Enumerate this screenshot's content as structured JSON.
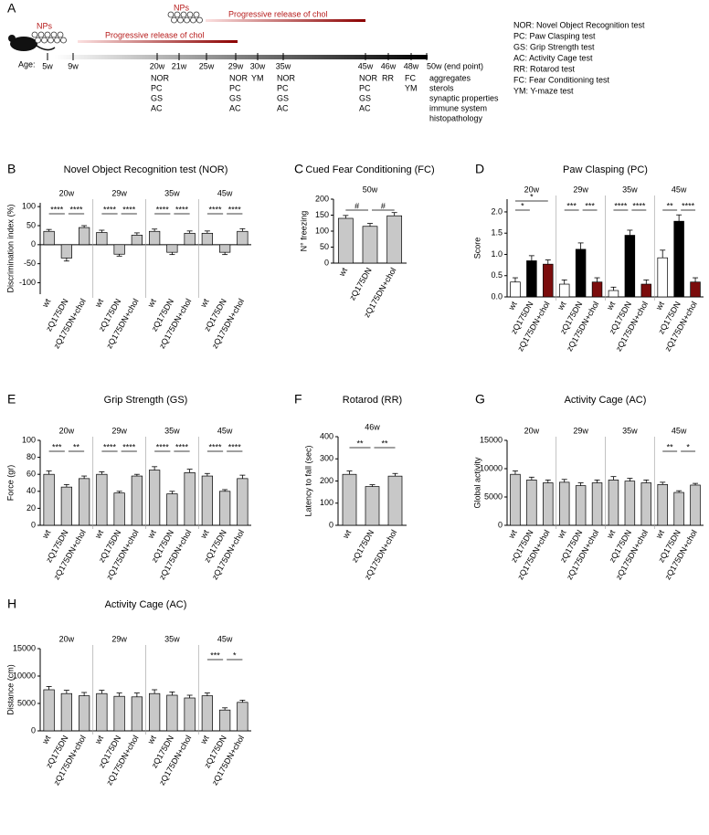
{
  "panel_a": {
    "label": "A",
    "np_labels": [
      "NPs",
      "NPs"
    ],
    "release_labels": [
      "Progressive release of chol",
      "Progressive release of chol"
    ],
    "age_label": "Age:",
    "ages": [
      {
        "age": "5w",
        "tests": []
      },
      {
        "age": "9w",
        "tests": []
      },
      {
        "age": "20w",
        "tests": [
          "NOR",
          "PC",
          "GS",
          "AC"
        ]
      },
      {
        "age": "21w",
        "tests": []
      },
      {
        "age": "25w",
        "tests": []
      },
      {
        "age": "29w",
        "tests": [
          "NOR",
          "PC",
          "GS",
          "AC"
        ]
      },
      {
        "age": "30w",
        "tests": [
          "YM"
        ]
      },
      {
        "age": "35w",
        "tests": [
          "NOR",
          "PC",
          "GS",
          "AC"
        ]
      },
      {
        "age": "45w",
        "tests": [
          "NOR",
          "PC",
          "GS",
          "AC"
        ]
      },
      {
        "age": "46w",
        "tests": [
          "RR"
        ]
      },
      {
        "age": "48w",
        "tests": [
          "FC",
          "YM"
        ]
      },
      {
        "age": "50w (end point)",
        "tests": [
          "aggregates",
          "sterols",
          "synaptic properties",
          "immune system",
          "histopathology"
        ]
      }
    ],
    "legend": [
      "NOR: Novel Object Recognition test",
      "PC: Paw Clasping test",
      "GS: Grip Strength test",
      "AC: Activity Cage test",
      "RR: Rotarod test",
      "FC: Fear Conditioning test",
      "YM: Y-maze test"
    ]
  },
  "chart_data": [
    {
      "type": "bar",
      "panel": "B",
      "title": "Novel Object Recognition test (NOR)",
      "ylabel": "Discrimination index (%)",
      "ylim": [
        -130,
        110
      ],
      "yticks": [
        -100,
        -50,
        0,
        50,
        100
      ],
      "groups": [
        "20w",
        "29w",
        "35w",
        "45w"
      ],
      "categories": [
        "wt",
        "zQ175DN",
        "zQ175DN+chol"
      ],
      "colors": [
        "#c8c8c8",
        "#c8c8c8",
        "#c8c8c8"
      ],
      "values": [
        [
          35,
          -35,
          45
        ],
        [
          32,
          -25,
          25
        ],
        [
          35,
          -20,
          30
        ],
        [
          30,
          -20,
          35
        ]
      ],
      "errors": [
        [
          5,
          8,
          5
        ],
        [
          6,
          5,
          6
        ],
        [
          6,
          6,
          6
        ],
        [
          6,
          6,
          7
        ]
      ],
      "significance": [
        [
          "****",
          "****",
          null
        ],
        [
          "****",
          "****",
          null
        ],
        [
          "****",
          "****",
          null
        ],
        [
          "****",
          "****",
          null
        ]
      ]
    },
    {
      "type": "bar",
      "panel": "C",
      "title": "Cued Fear Conditioning (FC)",
      "ylabel": "N° freezing",
      "ylim": [
        0,
        200
      ],
      "yticks": [
        0,
        50,
        100,
        150,
        200
      ],
      "groups": [
        "50w"
      ],
      "categories": [
        "wt",
        "zQ175DN",
        "zQ175DN+chol"
      ],
      "colors": [
        "#c8c8c8",
        "#c8c8c8",
        "#c8c8c8"
      ],
      "values": [
        [
          140,
          115,
          148
        ]
      ],
      "errors": [
        [
          9,
          9,
          10
        ]
      ],
      "significance": [
        [
          "#",
          "#",
          null
        ]
      ]
    },
    {
      "type": "bar",
      "panel": "D",
      "title": "Paw Clasping (PC)",
      "ylabel": "Score",
      "ylim": [
        0,
        2.3
      ],
      "yticks": [
        {
          "value": 0,
          "label": "0.0"
        },
        {
          "value": 0.5,
          "label": "0.5"
        },
        {
          "value": 1,
          "label": "1.0"
        },
        {
          "value": 1.5,
          "label": "1.5"
        },
        {
          "value": 2,
          "label": "2.0"
        }
      ],
      "groups": [
        "20w",
        "29w",
        "35w",
        "45w"
      ],
      "categories": [
        "wt",
        "zQ175DN",
        "zQ175DN+chol"
      ],
      "colors": [
        "#ffffff",
        "#000000",
        "#7b0c0c"
      ],
      "values": [
        [
          0.35,
          0.85,
          0.77
        ],
        [
          0.3,
          1.12,
          0.35
        ],
        [
          0.15,
          1.45,
          0.3
        ],
        [
          0.92,
          1.78,
          0.35
        ]
      ],
      "errors": [
        [
          0.1,
          0.12,
          0.1
        ],
        [
          0.1,
          0.15,
          0.1
        ],
        [
          0.08,
          0.12,
          0.1
        ],
        [
          0.18,
          0.15,
          0.1
        ]
      ],
      "significance": [
        [
          "*",
          null,
          "*"
        ],
        [
          "***",
          "***",
          null
        ],
        [
          "****",
          "****",
          null
        ],
        [
          "**",
          "****",
          null
        ]
      ]
    },
    {
      "type": "bar",
      "panel": "E",
      "title": "Grip Strength (GS)",
      "ylabel": "Force (gr)",
      "ylim": [
        0,
        100
      ],
      "yticks": [
        0,
        20,
        40,
        60,
        80,
        100
      ],
      "groups": [
        "20w",
        "29w",
        "35w",
        "45w"
      ],
      "categories": [
        "wt",
        "zQ175DN",
        "zQ175DN+chol"
      ],
      "colors": [
        "#c8c8c8",
        "#c8c8c8",
        "#c8c8c8"
      ],
      "values": [
        [
          60,
          45,
          55
        ],
        [
          60,
          38,
          58
        ],
        [
          65,
          37,
          62
        ],
        [
          58,
          40,
          55
        ]
      ],
      "errors": [
        [
          4,
          3,
          3
        ],
        [
          3,
          2,
          2
        ],
        [
          4,
          3,
          4
        ],
        [
          3,
          2,
          4
        ]
      ],
      "significance": [
        [
          "***",
          "**",
          null
        ],
        [
          "****",
          "****",
          null
        ],
        [
          "****",
          "****",
          null
        ],
        [
          "****",
          "****",
          null
        ]
      ]
    },
    {
      "type": "bar",
      "panel": "F",
      "title": "Rotarod (RR)",
      "ylabel": "Latency to fall (sec)",
      "ylim": [
        0,
        400
      ],
      "yticks": [
        0,
        100,
        200,
        300,
        400
      ],
      "groups": [
        "46w"
      ],
      "categories": [
        "wt",
        "zQ175DN",
        "zQ175DN+chol"
      ],
      "colors": [
        "#c8c8c8",
        "#c8c8c8",
        "#c8c8c8"
      ],
      "values": [
        [
          230,
          175,
          222
        ]
      ],
      "errors": [
        [
          15,
          8,
          12
        ]
      ],
      "significance": [
        [
          "**",
          "**",
          null
        ]
      ]
    },
    {
      "type": "bar",
      "panel": "G",
      "title": "Activity Cage (AC)",
      "ylabel": "Global activity",
      "ylim": [
        0,
        15000
      ],
      "yticks": [
        0,
        5000,
        10000,
        15000
      ],
      "groups": [
        "20w",
        "29w",
        "35w",
        "45w"
      ],
      "categories": [
        "wt",
        "zQ175DN",
        "zQ175DN+chol"
      ],
      "colors": [
        "#c8c8c8",
        "#c8c8c8",
        "#c8c8c8"
      ],
      "values": [
        [
          9000,
          8000,
          7500
        ],
        [
          7600,
          7000,
          7500
        ],
        [
          8000,
          7800,
          7500
        ],
        [
          7200,
          5800,
          7100
        ]
      ],
      "errors": [
        [
          600,
          500,
          500
        ],
        [
          500,
          500,
          500
        ],
        [
          600,
          500,
          500
        ],
        [
          400,
          300,
          300
        ]
      ],
      "significance": [
        [
          null,
          null,
          null
        ],
        [
          null,
          null,
          null
        ],
        [
          null,
          null,
          null
        ],
        [
          "**",
          "*",
          null
        ]
      ]
    },
    {
      "type": "bar",
      "panel": "H",
      "title": "Activity Cage (AC)",
      "ylabel": "Distance (cm)",
      "ylim": [
        0,
        15000
      ],
      "yticks": [
        0,
        5000,
        10000,
        15000
      ],
      "groups": [
        "20w",
        "29w",
        "35w",
        "45w"
      ],
      "categories": [
        "wt",
        "zQ175DN",
        "zQ175DN+chol"
      ],
      "colors": [
        "#c8c8c8",
        "#c8c8c8",
        "#c8c8c8"
      ],
      "values": [
        [
          7500,
          6800,
          6400
        ],
        [
          6800,
          6300,
          6200
        ],
        [
          6800,
          6500,
          6000
        ],
        [
          6400,
          3800,
          5200
        ]
      ],
      "errors": [
        [
          600,
          600,
          600
        ],
        [
          600,
          600,
          700
        ],
        [
          700,
          600,
          500
        ],
        [
          500,
          400,
          400
        ]
      ],
      "significance": [
        [
          null,
          null,
          null
        ],
        [
          null,
          null,
          null
        ],
        [
          null,
          null,
          null
        ],
        [
          "***",
          "*",
          null
        ]
      ]
    }
  ]
}
